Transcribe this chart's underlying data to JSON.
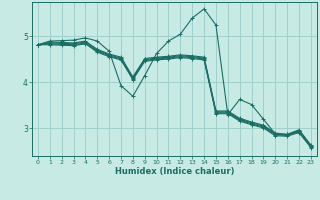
{
  "xlabel": "Humidex (Indice chaleur)",
  "bg_color": "#c8eae5",
  "line_color": "#1a6e64",
  "grid_color": "#a0d0cc",
  "xlim": [
    -0.5,
    23.5
  ],
  "ylim": [
    2.4,
    5.75
  ],
  "yticks": [
    3,
    4,
    5
  ],
  "xticks": [
    0,
    1,
    2,
    3,
    4,
    5,
    6,
    7,
    8,
    9,
    10,
    11,
    12,
    13,
    14,
    15,
    16,
    17,
    18,
    19,
    20,
    21,
    22,
    23
  ],
  "lines": [
    [
      4.82,
      4.9,
      4.91,
      4.92,
      4.97,
      4.9,
      4.68,
      3.93,
      3.7,
      4.15,
      4.63,
      4.9,
      5.05,
      5.4,
      5.6,
      5.25,
      3.3,
      3.63,
      3.52,
      3.2,
      2.88,
      2.85,
      2.95,
      2.62
    ],
    [
      4.82,
      4.88,
      4.87,
      4.86,
      4.9,
      4.72,
      4.62,
      4.55,
      4.12,
      4.52,
      4.55,
      4.57,
      4.6,
      4.58,
      4.55,
      3.38,
      3.38,
      3.22,
      3.14,
      3.07,
      2.9,
      2.87,
      2.97,
      2.64
    ],
    [
      4.82,
      4.86,
      4.85,
      4.84,
      4.88,
      4.7,
      4.6,
      4.53,
      4.1,
      4.5,
      4.53,
      4.55,
      4.58,
      4.56,
      4.53,
      3.36,
      3.36,
      3.2,
      3.12,
      3.05,
      2.88,
      2.87,
      2.95,
      2.62
    ],
    [
      4.82,
      4.84,
      4.83,
      4.82,
      4.86,
      4.68,
      4.58,
      4.51,
      4.08,
      4.48,
      4.51,
      4.53,
      4.56,
      4.54,
      4.51,
      3.34,
      3.34,
      3.18,
      3.1,
      3.03,
      2.86,
      2.85,
      2.93,
      2.6
    ],
    [
      4.82,
      4.82,
      4.81,
      4.8,
      4.84,
      4.66,
      4.56,
      4.49,
      4.06,
      4.46,
      4.49,
      4.51,
      4.54,
      4.52,
      4.49,
      3.32,
      3.32,
      3.16,
      3.08,
      3.01,
      2.84,
      2.83,
      2.91,
      2.58
    ]
  ]
}
